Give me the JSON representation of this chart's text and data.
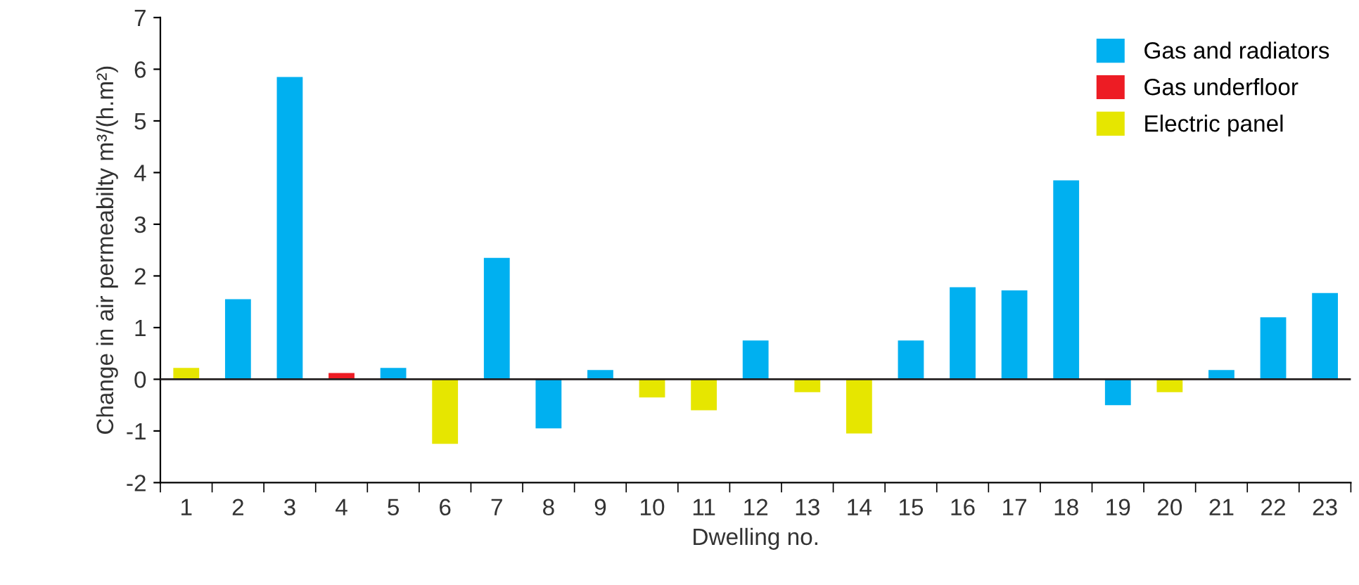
{
  "chart_data": {
    "type": "bar",
    "xlabel": "Dwelling no.",
    "ylabel": "Change in air permeabilty m³/(h.m²)",
    "categories": [
      "1",
      "2",
      "3",
      "4",
      "5",
      "6",
      "7",
      "8",
      "9",
      "10",
      "11",
      "12",
      "13",
      "14",
      "15",
      "16",
      "17",
      "18",
      "19",
      "20",
      "21",
      "22",
      "23"
    ],
    "series": [
      {
        "name": "Gas and radiators",
        "color": "#00b0f0",
        "values": [
          null,
          1.55,
          5.85,
          null,
          0.22,
          null,
          2.35,
          -0.95,
          0.18,
          null,
          null,
          0.75,
          null,
          null,
          0.75,
          1.78,
          1.72,
          3.85,
          -0.5,
          null,
          0.18,
          1.2,
          1.67
        ]
      },
      {
        "name": "Gas underfloor",
        "color": "#ed1c24",
        "values": [
          null,
          null,
          null,
          0.12,
          null,
          null,
          null,
          null,
          null,
          null,
          null,
          null,
          null,
          null,
          null,
          null,
          null,
          null,
          null,
          null,
          null,
          null,
          null
        ]
      },
      {
        "name": "Electric panel",
        "color": "#e6e600",
        "values": [
          0.22,
          null,
          null,
          null,
          null,
          -1.25,
          null,
          null,
          null,
          -0.35,
          -0.6,
          null,
          -0.25,
          -1.05,
          null,
          null,
          null,
          null,
          null,
          -0.25,
          null,
          null,
          null
        ]
      }
    ],
    "ylim": [
      -2,
      7
    ],
    "yticks": [
      -2,
      -1,
      0,
      1,
      2,
      3,
      4,
      5,
      6,
      7
    ],
    "ref_lines": [
      {
        "axis": "y",
        "value": 0,
        "color": "#231f20"
      }
    ],
    "legend": "top right",
    "grid": false
  }
}
